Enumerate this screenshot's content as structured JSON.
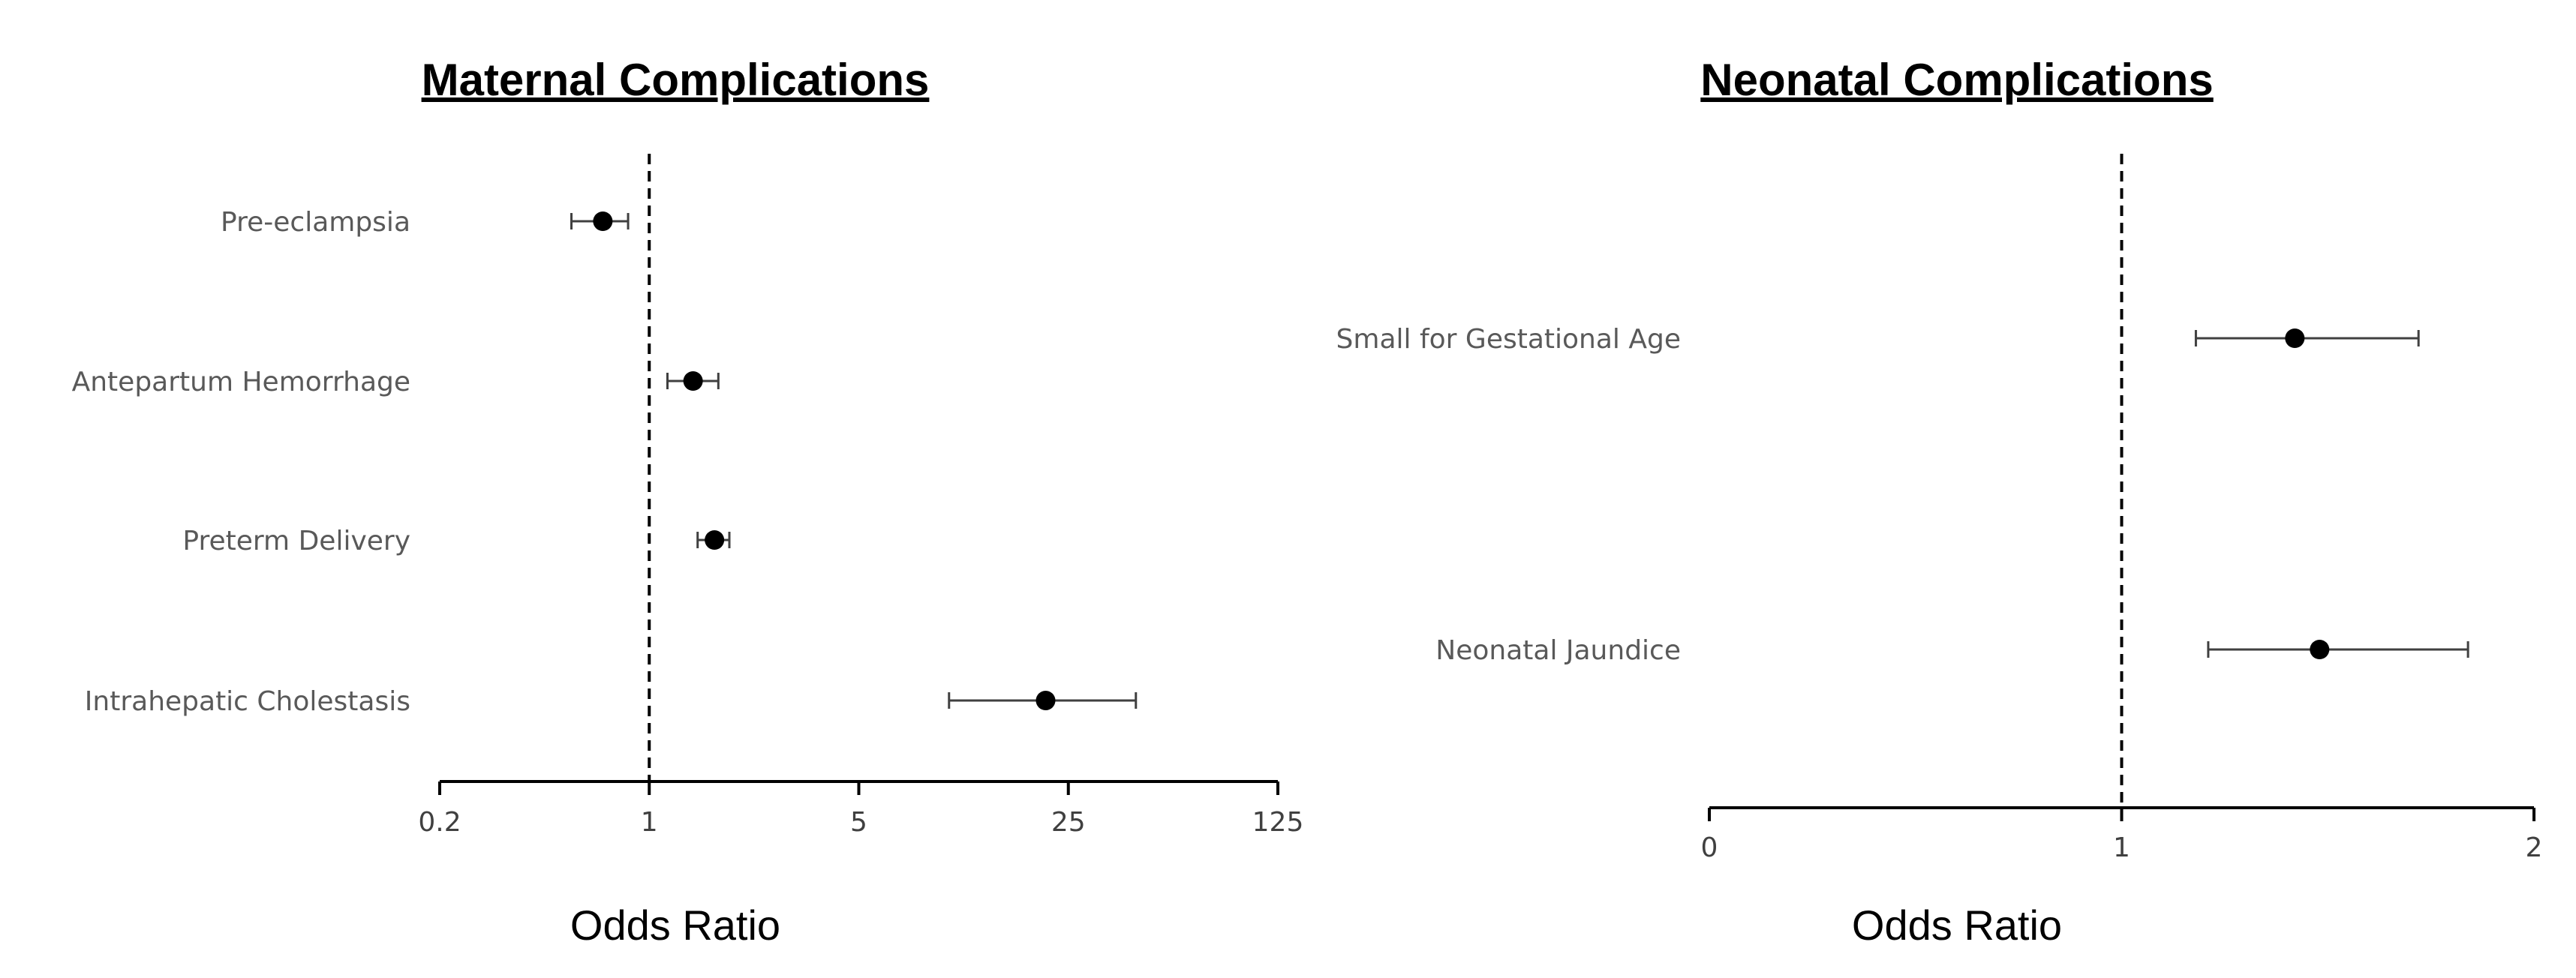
{
  "chart_data": [
    {
      "type": "forest",
      "title": "Maternal Complications",
      "xlabel": "Odds Ratio",
      "xscale": "log5",
      "xlim": [
        0.2,
        125
      ],
      "xticks": [
        0.2,
        1,
        5,
        25,
        125
      ],
      "xtick_labels": [
        "0.2",
        "1",
        "5",
        "25",
        "125"
      ],
      "reference_line": 1,
      "categories": [
        "Pre-eclampsia",
        "Antepartum Hemorrhage",
        "Preterm Delivery",
        "Intrahepatic Cholestasis"
      ],
      "estimates": [
        0.7,
        1.4,
        1.65,
        21
      ],
      "lower": [
        0.55,
        1.15,
        1.45,
        10
      ],
      "upper": [
        0.85,
        1.7,
        1.85,
        42
      ]
    },
    {
      "type": "forest",
      "title": "Neonatal Complications",
      "xlabel": "Odds Ratio",
      "xscale": "linear",
      "xlim": [
        0,
        2
      ],
      "xticks": [
        0,
        1,
        2
      ],
      "xtick_labels": [
        "0",
        "1",
        "2"
      ],
      "reference_line": 1,
      "categories": [
        "Small for Gestational Age",
        "Neonatal Jaundice"
      ],
      "estimates": [
        1.42,
        1.48
      ],
      "lower": [
        1.18,
        1.21
      ],
      "upper": [
        1.72,
        1.84
      ]
    }
  ]
}
